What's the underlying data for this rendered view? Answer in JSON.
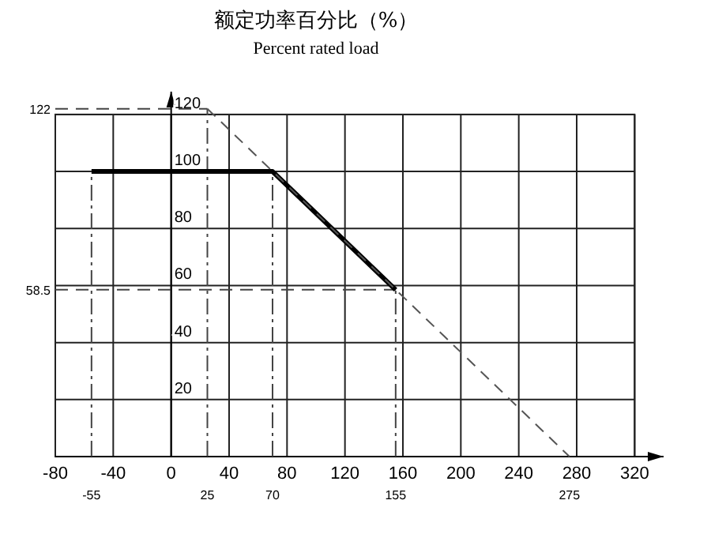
{
  "chart_data": {
    "type": "line",
    "title": "额定功率百分比（%）",
    "subtitle": "Percent rated load",
    "series": [
      {
        "color": "#000000",
        "x": [
          -55,
          70,
          155
        ],
        "values": [
          100,
          100,
          58.5
        ],
        "line_style": "solid"
      },
      {
        "color": "#555555",
        "x": [
          25,
          275
        ],
        "values": [
          122,
          0
        ],
        "line_style": "dashed"
      }
    ],
    "xlim": [
      -80,
      340
    ],
    "xticks": [
      -80,
      -40,
      0,
      40,
      80,
      120,
      160,
      200,
      240,
      280,
      320
    ],
    "ylim": [
      0,
      128
    ],
    "yticks": [
      20,
      40,
      60,
      80,
      100,
      120
    ],
    "grid": true,
    "ref_lines": [
      {
        "axis": "x",
        "value": -55,
        "label": "-55"
      },
      {
        "axis": "x",
        "value": 25,
        "label": "25"
      },
      {
        "axis": "x",
        "value": 70,
        "label": "70"
      },
      {
        "axis": "x",
        "value": 155,
        "label": "155"
      },
      {
        "axis": "y",
        "value": 122,
        "label": "122"
      },
      {
        "axis": "y",
        "value": 58.5,
        "label": "58.5"
      }
    ],
    "annotations": [
      {
        "text": "275",
        "x": 275,
        "y": 0
      }
    ]
  }
}
